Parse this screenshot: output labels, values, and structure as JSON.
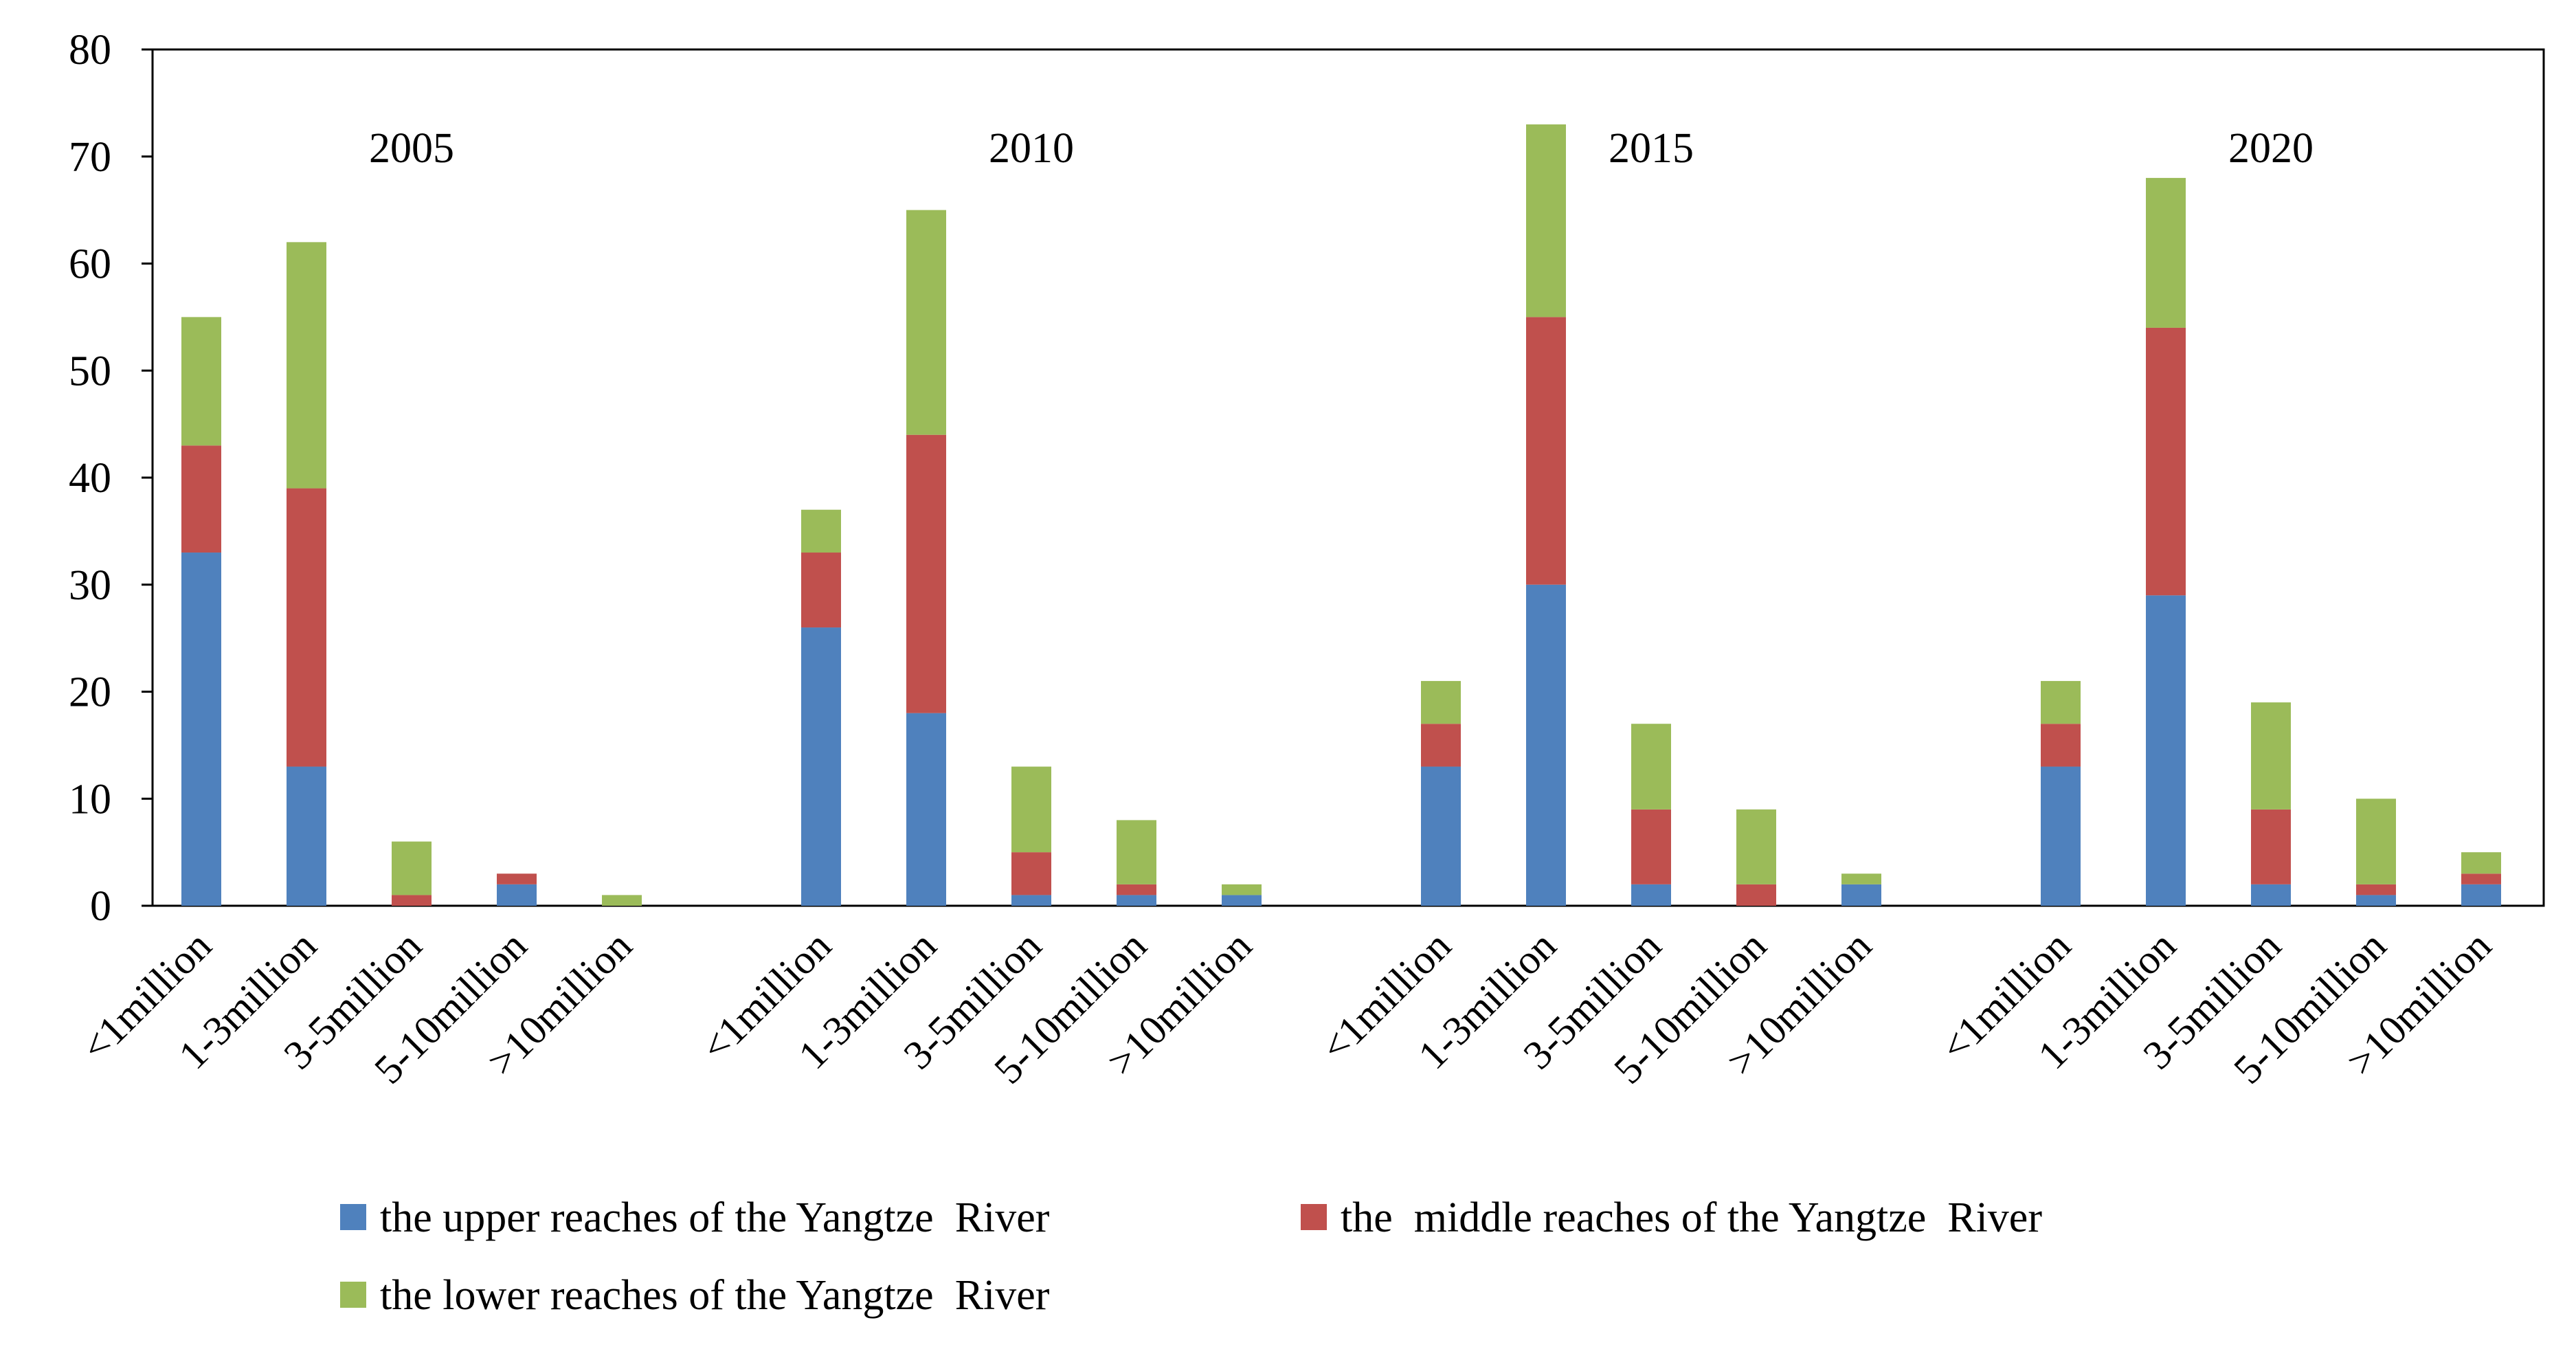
{
  "chart_data": {
    "type": "bar",
    "stacked": true,
    "title": "",
    "xlabel": "",
    "ylabel": "",
    "ylim": [
      0,
      80
    ],
    "yticks": [
      0,
      10,
      20,
      30,
      40,
      50,
      60,
      70,
      80
    ],
    "legend_position": "bottom",
    "groups": [
      "2005",
      "2010",
      "2015",
      "2020"
    ],
    "categories": [
      "<1million",
      "1-3million",
      "3-5million",
      "5-10million",
      ">10million"
    ],
    "category_labels": [
      "<1million",
      "1-3million",
      "3-5million",
      "5-10million",
      ">10million"
    ],
    "series": [
      {
        "name": "the upper reaches of the Yangtze  River",
        "color": "#4F81BD",
        "values": [
          [
            33,
            13,
            0,
            2,
            0
          ],
          [
            26,
            18,
            1,
            1,
            1
          ],
          [
            13,
            30,
            2,
            0,
            2
          ],
          [
            13,
            29,
            2,
            1,
            2
          ]
        ]
      },
      {
        "name": "the  middle reaches of the Yangtze  River",
        "color": "#C0504D",
        "values": [
          [
            10,
            26,
            1,
            1,
            0
          ],
          [
            7,
            26,
            4,
            1,
            0
          ],
          [
            4,
            25,
            7,
            2,
            0
          ],
          [
            4,
            25,
            7,
            1,
            1
          ]
        ]
      },
      {
        "name": "the lower reaches of the Yangtze  River",
        "color": "#9BBB59",
        "values": [
          [
            12,
            23,
            5,
            0,
            1
          ],
          [
            4,
            21,
            8,
            6,
            1
          ],
          [
            4,
            18,
            8,
            7,
            1
          ],
          [
            4,
            14,
            10,
            8,
            2
          ]
        ]
      }
    ]
  }
}
